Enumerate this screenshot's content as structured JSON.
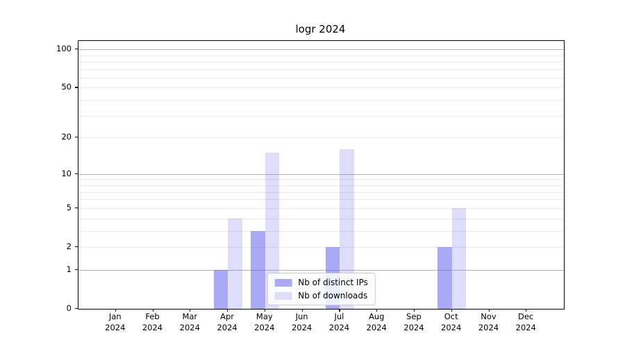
{
  "title": "logr 2024",
  "chart_data": {
    "type": "bar",
    "title": "logr 2024",
    "categories": [
      "Jan 2024",
      "Feb 2024",
      "Mar 2024",
      "Apr 2024",
      "May 2024",
      "Jun 2024",
      "Jul 2024",
      "Aug 2024",
      "Sep 2024",
      "Oct 2024",
      "Nov 2024",
      "Dec 2024"
    ],
    "series": [
      {
        "name": "Nb of distinct IPs",
        "values": [
          0,
          0,
          0,
          1,
          3,
          0,
          2,
          0,
          0,
          2,
          0,
          0
        ],
        "color_fill": "rgba(99,99,239,0.55)",
        "color_solid": "#a9a9f6"
      },
      {
        "name": "Nb of downloads",
        "values": [
          0,
          0,
          0,
          4,
          15,
          0,
          16,
          0,
          0,
          5,
          0,
          0
        ],
        "color_fill": "rgba(99,99,239,0.21)",
        "color_solid": "#dedefb"
      }
    ],
    "yscale": "log10(1+x)",
    "ylim": [
      0,
      116
    ],
    "yticks": [
      0,
      1,
      2,
      5,
      10,
      20,
      50,
      100
    ],
    "major_gridlines": [
      1,
      10,
      100
    ],
    "minor_gridlines": [
      2,
      3,
      4,
      5,
      6,
      7,
      8,
      9,
      20,
      30,
      40,
      50,
      60,
      70,
      80,
      90
    ],
    "grid": "both",
    "legend_position": "lower center",
    "xlabel": "",
    "ylabel": ""
  },
  "colors": {
    "background": "#ffffff",
    "axis": "#000000",
    "major_grid": "#b4b4b4",
    "minor_grid": "#e9e9e9",
    "legend_border": "#cccccc",
    "legend_background": "rgba(255,255,255,0.8)"
  }
}
